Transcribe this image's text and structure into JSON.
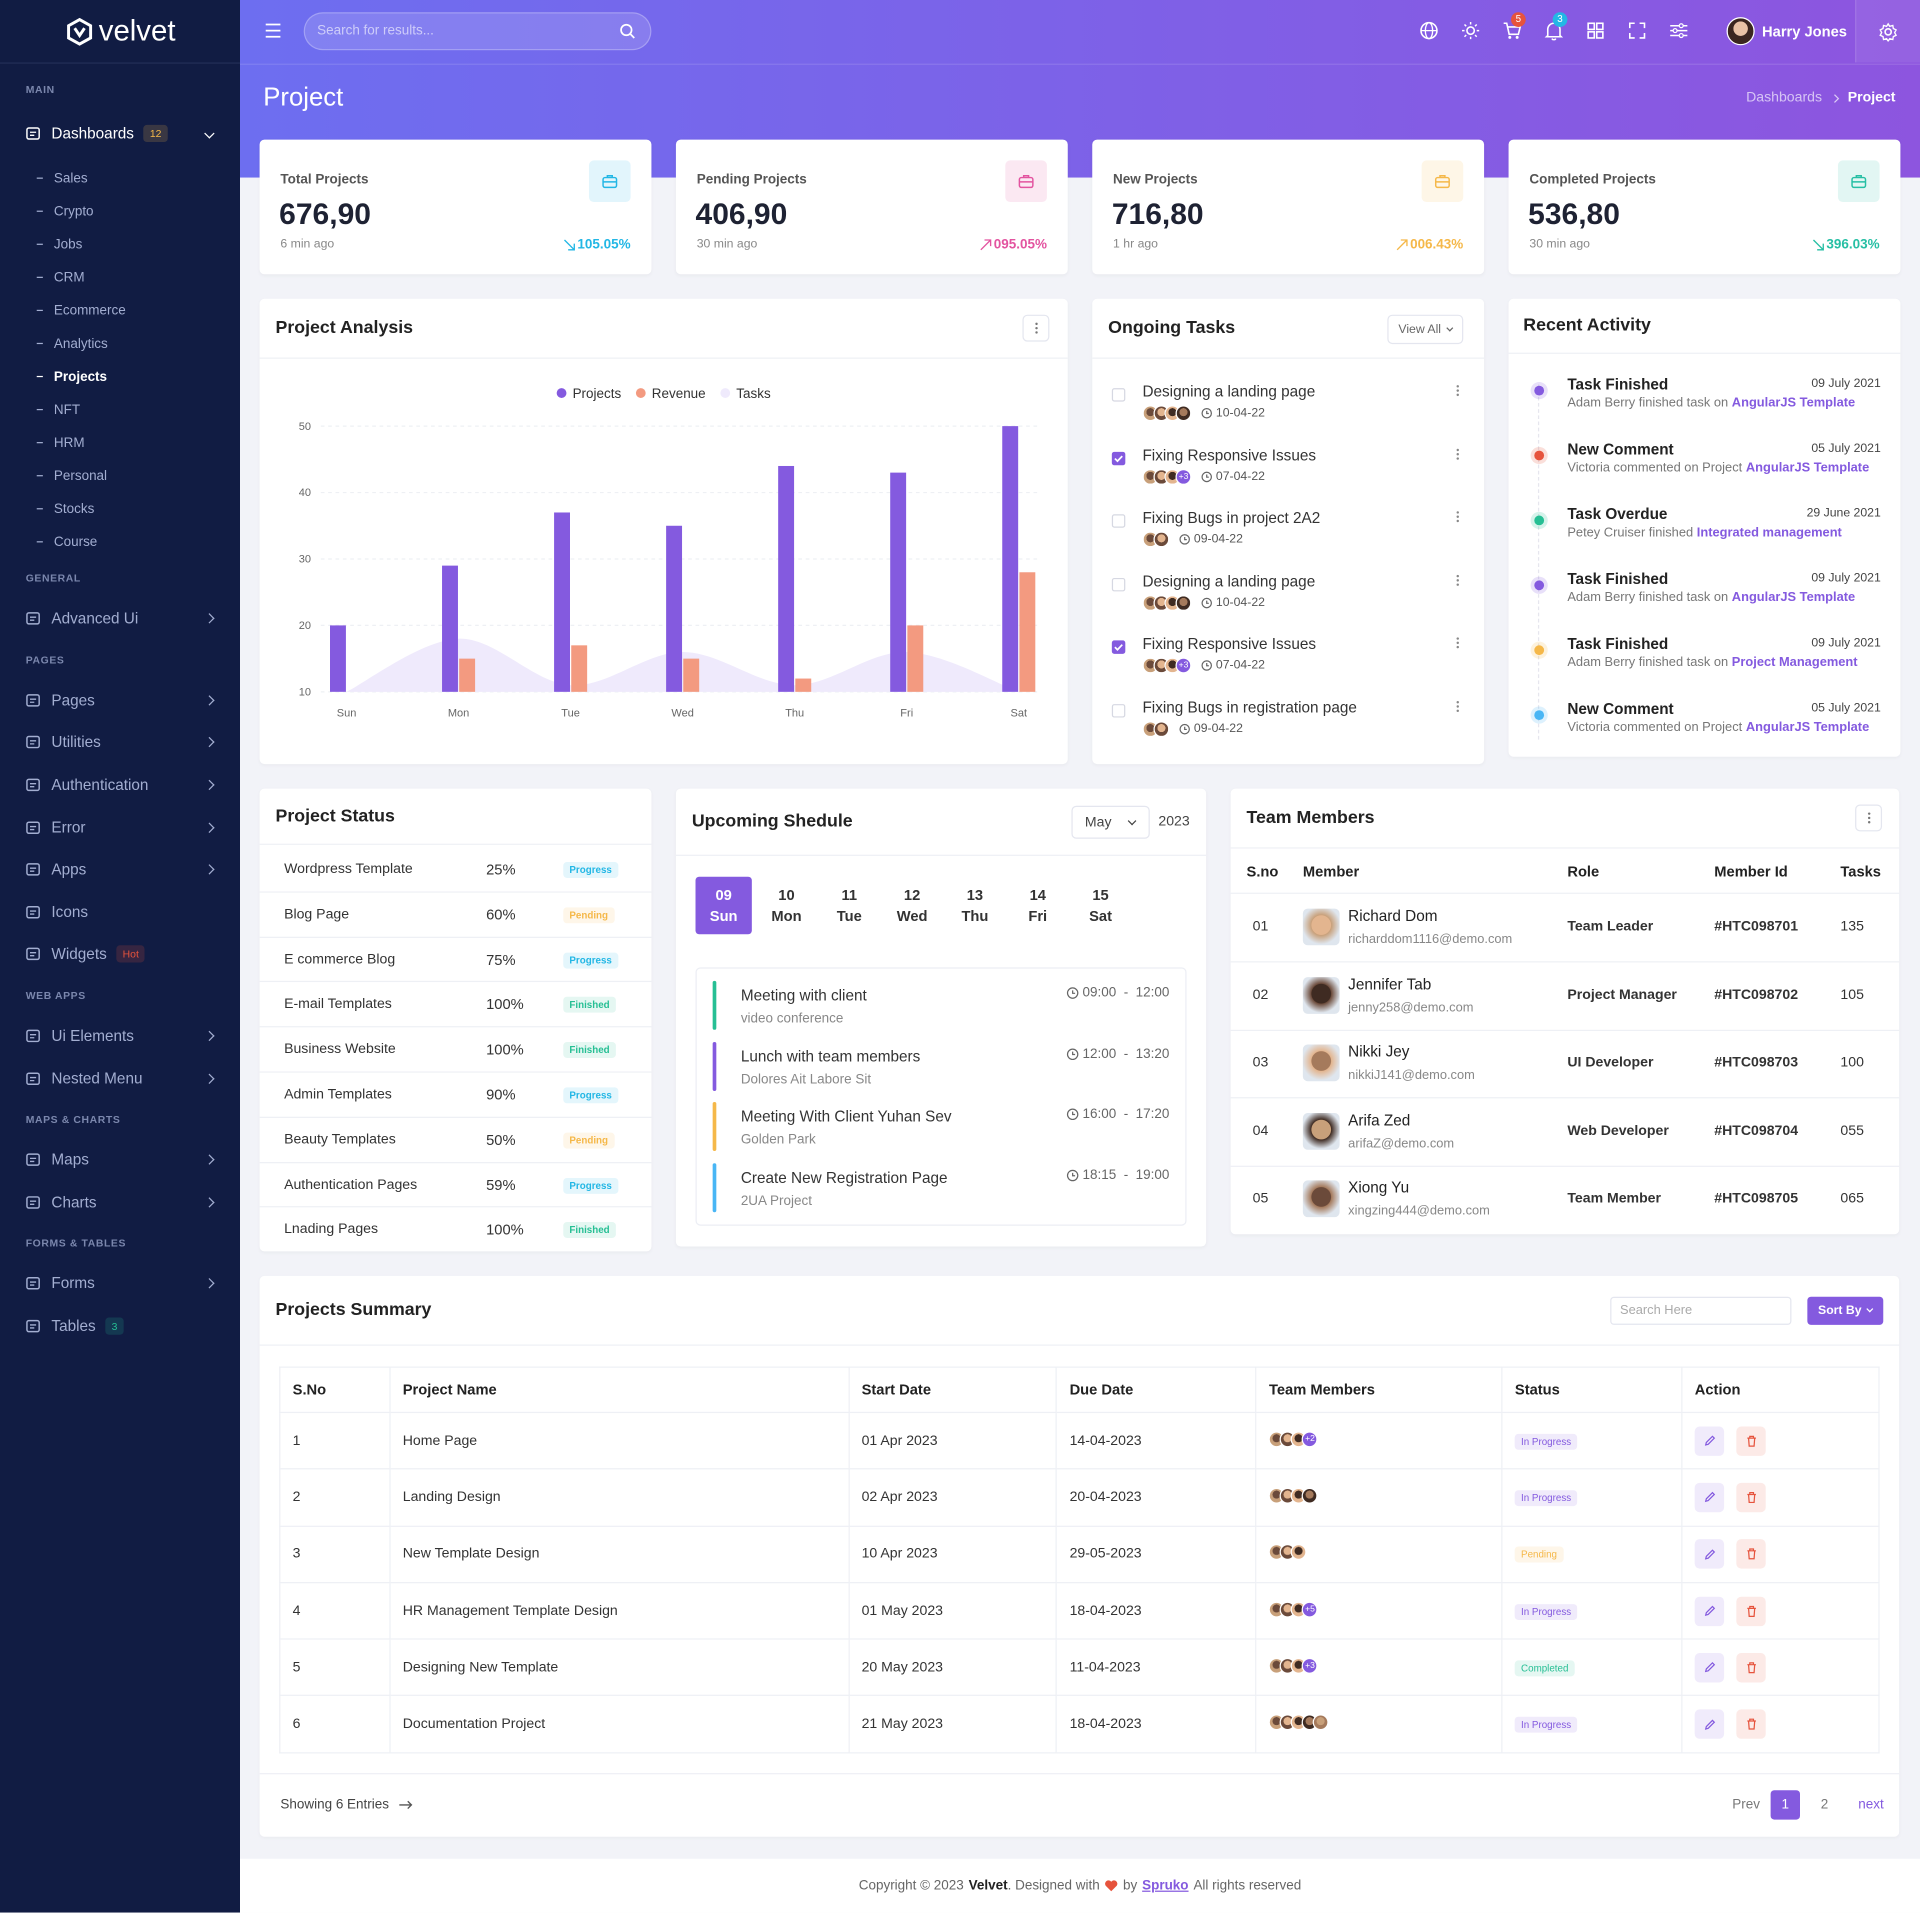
{
  "sidebar": {
    "logo": "velvet",
    "sections": [
      {
        "label": "MAIN",
        "items": [
          {
            "label": "Dashboards",
            "badge": "12",
            "badge_color": "#f5b849",
            "arrow": true,
            "active_sub": 6,
            "sub": [
              "Sales",
              "Crypto",
              "Jobs",
              "CRM",
              "Ecommerce",
              "Analytics",
              "Projects",
              "NFT",
              "HRM",
              "Personal",
              "Stocks",
              "Course"
            ]
          }
        ]
      },
      {
        "label": "GENERAL",
        "items": [
          {
            "label": "Advanced Ui",
            "arrow": true
          }
        ]
      },
      {
        "label": "PAGES",
        "items": [
          {
            "label": "Pages",
            "arrow": true
          },
          {
            "label": "Utilities",
            "arrow": true
          },
          {
            "label": "Authentication",
            "arrow": true
          },
          {
            "label": "Error",
            "arrow": true
          },
          {
            "label": "Apps",
            "arrow": true
          },
          {
            "label": "Icons",
            "arrow": false
          },
          {
            "label": "Widgets",
            "badge": "Hot",
            "badge_color": "#e6533c",
            "arrow": false
          }
        ]
      },
      {
        "label": "WEB APPS",
        "items": [
          {
            "label": "Ui Elements",
            "arrow": true
          },
          {
            "label": "Nested Menu",
            "arrow": true
          }
        ]
      },
      {
        "label": "MAPS & CHARTS",
        "items": [
          {
            "label": "Maps",
            "arrow": true
          },
          {
            "label": "Charts",
            "arrow": true
          }
        ]
      },
      {
        "label": "FORMS & TABLES",
        "items": [
          {
            "label": "Forms",
            "arrow": true
          },
          {
            "label": "Tables",
            "badge": "3",
            "badge_color": "#26bf94",
            "arrow": false
          }
        ]
      }
    ]
  },
  "header": {
    "search": "Search for results...",
    "cart_badge": "5",
    "notify_badge": "3",
    "user": "Harry Jones",
    "page_title": "Project",
    "breadcrumb": [
      "Dashboards",
      "Project"
    ]
  },
  "stats": [
    {
      "label": "Total Projects",
      "value": "676,90",
      "time": "6 min ago",
      "change": "105.05%",
      "trend": "down",
      "color": "#23b7e5"
    },
    {
      "label": "Pending Projects",
      "value": "406,90",
      "time": "30 min ago",
      "change": "095.05%",
      "trend": "up",
      "color": "#e354a0"
    },
    {
      "label": "New Projects",
      "value": "716,80",
      "time": "1 hr ago",
      "change": "006.43%",
      "trend": "up",
      "color": "#f5b849"
    },
    {
      "label": "Completed Projects",
      "value": "536,80",
      "time": "30 min ago",
      "change": "396.03%",
      "trend": "down",
      "color": "#26bfa4"
    }
  ],
  "chart_data": {
    "type": "bar",
    "title": "Project Analysis",
    "categories": [
      "Sun",
      "Mon",
      "Tue",
      "Wed",
      "Thu",
      "Fri",
      "Sat"
    ],
    "series": [
      {
        "name": "Projects",
        "color": "#845adf",
        "values": [
          20,
          29,
          37,
          35,
          44,
          43,
          50
        ]
      },
      {
        "name": "Revenue",
        "color": "#f39a80",
        "values": [
          null,
          15,
          17,
          15,
          12,
          20,
          28
        ]
      },
      {
        "name": "Tasks",
        "type": "area",
        "color": "#efeafc",
        "values": [
          10,
          18,
          11,
          16,
          11,
          16,
          10
        ]
      }
    ],
    "ylim": [
      10,
      50
    ],
    "yticks": [
      10,
      20,
      30,
      40,
      50
    ],
    "grid": true
  },
  "tasks": {
    "title": "Ongoing Tasks",
    "button": "View All",
    "items": [
      {
        "title": "Designing a landing page",
        "date": "10-04-22",
        "checked": false,
        "avatars": 4
      },
      {
        "title": "Fixing Responsive Issues",
        "date": "07-04-22",
        "checked": true,
        "avatars": 3,
        "extra": "+3"
      },
      {
        "title": "Fixing Bugs in project 2A2",
        "date": "09-04-22",
        "checked": false,
        "avatars": 2
      },
      {
        "title": "Designing a landing page",
        "date": "10-04-22",
        "checked": false,
        "avatars": 4
      },
      {
        "title": "Fixing Responsive Issues",
        "date": "07-04-22",
        "checked": true,
        "avatars": 3,
        "extra": "+3"
      },
      {
        "title": "Fixing Bugs in registration page",
        "date": "09-04-22",
        "checked": false,
        "avatars": 2
      }
    ]
  },
  "activity": {
    "title": "Recent Activity",
    "items": [
      {
        "title": "Task Finished",
        "date": "09 July 2021",
        "text": "Adam Berry finished task on",
        "link": "AngularJS Template",
        "color": "#845adf"
      },
      {
        "title": "New Comment",
        "date": "05 July 2021",
        "text": "Victoria commented on Project",
        "link": "AngularJS Template",
        "color": "#e6533c"
      },
      {
        "title": "Task Overdue",
        "date": "29 June 2021",
        "text": "Petey Cruiser finished",
        "link": "Integrated management",
        "color": "#26bf94"
      },
      {
        "title": "Task Finished",
        "date": "09 July 2021",
        "text": "Adam Berry finished task on",
        "link": "AngularJS Template",
        "color": "#845adf"
      },
      {
        "title": "Task Finished",
        "date": "09 July 2021",
        "text": "Adam Berry finished task on",
        "link": "Project Management",
        "color": "#f5b849"
      },
      {
        "title": "New Comment",
        "date": "05 July 2021",
        "text": "Victoria commented on Project",
        "link": "AngularJS Template",
        "color": "#49b6f5"
      }
    ]
  },
  "status": {
    "title": "Project Status",
    "rows": [
      {
        "name": "Wordpress Template",
        "percent": "25%",
        "status": "Progress",
        "color": "#23b7e5"
      },
      {
        "name": "Blog Page",
        "percent": "60%",
        "status": "Pending",
        "color": "#f5b849"
      },
      {
        "name": "E commerce Blog",
        "percent": "75%",
        "status": "Progress",
        "color": "#23b7e5"
      },
      {
        "name": "E-mail Templates",
        "percent": "100%",
        "status": "Finished",
        "color": "#26bf94"
      },
      {
        "name": "Business Website",
        "percent": "100%",
        "status": "Finished",
        "color": "#26bf94"
      },
      {
        "name": "Admin Templates",
        "percent": "90%",
        "status": "Progress",
        "color": "#23b7e5"
      },
      {
        "name": "Beauty Templates",
        "percent": "50%",
        "status": "Pending",
        "color": "#f5b849"
      },
      {
        "name": "Authentication Pages",
        "percent": "59%",
        "status": "Progress",
        "color": "#23b7e5"
      },
      {
        "name": "Lnading Pages",
        "percent": "100%",
        "status": "Finished",
        "color": "#26bf94"
      }
    ]
  },
  "schedule": {
    "title": "Upcoming Shedule",
    "month": "May",
    "year": "2023",
    "active": 0,
    "days": [
      {
        "num": "09",
        "day": "Sun"
      },
      {
        "num": "10",
        "day": "Mon"
      },
      {
        "num": "11",
        "day": "Tue"
      },
      {
        "num": "12",
        "day": "Wed"
      },
      {
        "num": "13",
        "day": "Thu"
      },
      {
        "num": "14",
        "day": "Fri"
      },
      {
        "num": "15",
        "day": "Sat"
      }
    ],
    "events": [
      {
        "title": "Meeting with client",
        "sub": "video conference",
        "time": "09:00  -  12:00",
        "color": "#26bf94"
      },
      {
        "title": "Lunch with team members",
        "sub": "Dolores Ait Labore Sit",
        "time": "12:00  -  13:20",
        "color": "#845adf"
      },
      {
        "title": "Meeting With Client Yuhan Sev",
        "sub": "Golden Park",
        "time": "16:00  -  17:20",
        "color": "#f5b849"
      },
      {
        "title": "Create New Registration Page",
        "sub": "2UA Project",
        "time": "18:15  -  19:00",
        "color": "#49b6f5"
      }
    ]
  },
  "team": {
    "title": "Team Members",
    "headers": [
      "S.no",
      "Member",
      "Role",
      "Member Id",
      "Tasks"
    ],
    "rows": [
      {
        "sno": "01",
        "name": "Richard Dom",
        "email": "richarddom1116@demo.com",
        "role": "Team Leader",
        "id": "#HTC098701",
        "tasks": "135"
      },
      {
        "sno": "02",
        "name": "Jennifer Tab",
        "email": "jenny258@demo.com",
        "role": "Project Manager",
        "id": "#HTC098702",
        "tasks": "105"
      },
      {
        "sno": "03",
        "name": "Nikki Jey",
        "email": "nikkiJ141@demo.com",
        "role": "UI Developer",
        "id": "#HTC098703",
        "tasks": "100"
      },
      {
        "sno": "04",
        "name": "Arifa Zed",
        "email": "arifaZ@demo.com",
        "role": "Web Developer",
        "id": "#HTC098704",
        "tasks": "055"
      },
      {
        "sno": "05",
        "name": "Xiong Yu",
        "email": "xingzing444@demo.com",
        "role": "Team Member",
        "id": "#HTC098705",
        "tasks": "065"
      }
    ]
  },
  "summary": {
    "title": "Projects Summary",
    "search": "Search Here",
    "sort": "Sort By",
    "headers": [
      "S.No",
      "Project Name",
      "Start Date",
      "Due Date",
      "Team Members",
      "Status",
      "Action"
    ],
    "rows": [
      {
        "sno": "1",
        "name": "Home Page",
        "start": "01 Apr 2023",
        "due": "14-04-2023",
        "avatars": 3,
        "extra": "+2",
        "status": "In Progress",
        "color": "#845adf"
      },
      {
        "sno": "2",
        "name": "Landing Design",
        "start": "02 Apr 2023",
        "due": "20-04-2023",
        "avatars": 4,
        "status": "In Progress",
        "color": "#845adf"
      },
      {
        "sno": "3",
        "name": "New Template Design",
        "start": "10 Apr 2023",
        "due": "29-05-2023",
        "avatars": 3,
        "status": "Pending",
        "color": "#f5b849"
      },
      {
        "sno": "4",
        "name": "HR Management Template Design",
        "start": "01 May 2023",
        "due": "18-04-2023",
        "avatars": 3,
        "extra": "+5",
        "status": "In Progress",
        "color": "#845adf"
      },
      {
        "sno": "5",
        "name": "Designing New Template",
        "start": "20 May 2023",
        "due": "11-04-2023",
        "avatars": 3,
        "extra": "+3",
        "status": "Completed",
        "color": "#26bf94"
      },
      {
        "sno": "6",
        "name": "Documentation Project",
        "start": "21 May 2023",
        "due": "18-04-2023",
        "avatars": 5,
        "status": "In Progress",
        "color": "#845adf"
      }
    ],
    "showing": "Showing 6 Entries",
    "pages": [
      "Prev",
      "1",
      "2",
      "next"
    ],
    "active_page": 1
  },
  "footer": {
    "copyright": "Copyright © 2023",
    "brand": "Velvet",
    "designed": ". Designed with",
    "by": "by",
    "author": "Spruko",
    "rights": "All rights reserved"
  }
}
